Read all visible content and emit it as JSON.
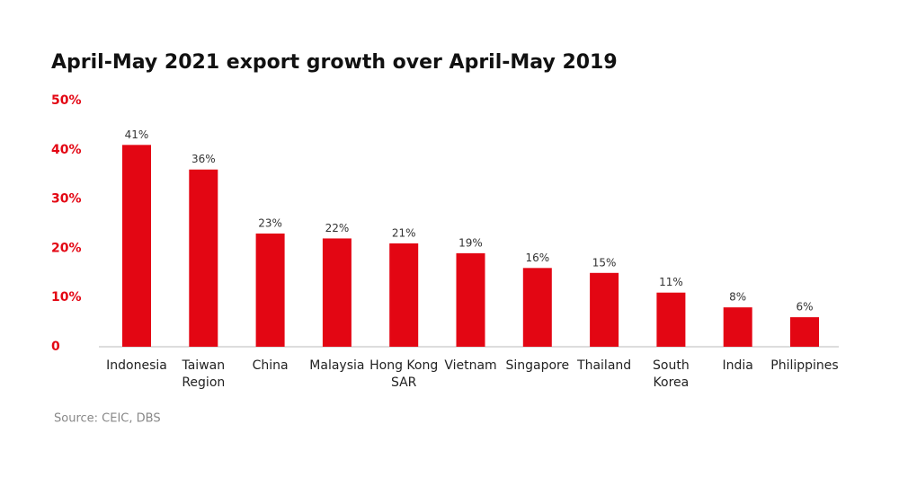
{
  "chart_data": {
    "type": "bar",
    "title": "April-May 2021 export growth over April-May 2019",
    "categories": [
      "Indonesia",
      "Taiwan\nRegion",
      "China",
      "Malaysia",
      "Hong Kong\nSAR",
      "Vietnam",
      "Singapore",
      "Thailand",
      "South\nKorea",
      "India",
      "Philippines"
    ],
    "values": [
      41,
      36,
      23,
      22,
      21,
      19,
      16,
      15,
      11,
      8,
      6
    ],
    "value_labels": [
      "41%",
      "36%",
      "23%",
      "22%",
      "21%",
      "19%",
      "16%",
      "15%",
      "11%",
      "8%",
      "6%"
    ],
    "color": "#e30613",
    "ylim": [
      0,
      50
    ],
    "yticks": [
      0,
      {
        "value": 10,
        "label": "10%"
      },
      {
        "value": 20,
        "label": "20%"
      },
      {
        "value": 30,
        "label": "30%"
      },
      {
        "value": 40,
        "label": "40%"
      },
      {
        "value": 50,
        "label": "50%"
      }
    ],
    "grid": false,
    "source": "Source: CEIC, DBS"
  }
}
